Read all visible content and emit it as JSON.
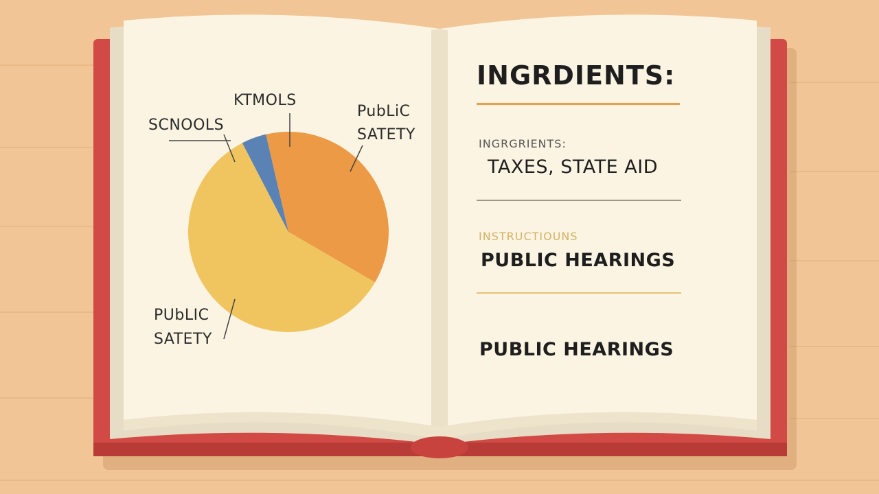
{
  "colors": {
    "table": "#f2c596",
    "cover": "#d24a45",
    "page": "#fbf4e2",
    "rule_orange": "#e8a04c",
    "rule_gray": "#9a9a8a",
    "rule_gold": "#e2c27a"
  },
  "chart_data": {
    "type": "pie",
    "slices": [
      {
        "label": "KTMOLS",
        "value": 37,
        "color": "#ec9a45"
      },
      {
        "label": "SCNOOLS",
        "value": 4,
        "color": "#5a82b4"
      },
      {
        "label": "PUbLIC SATETY",
        "value": 59,
        "color": "#f0c560"
      }
    ],
    "labels": {
      "ktmols": "KTMOLS",
      "schools": "SCNOOLS",
      "public_safety_top_line1": "PubLiC",
      "public_safety_top_line2": "SATETY",
      "public_safety_bottom_line1": "PUbLIC",
      "public_safety_bottom_line2": "SATETY"
    }
  },
  "right_page": {
    "title": "INGRDIENTS:",
    "sub1": "INGRGRIENTS:",
    "item1": "TAXES, STATE AID",
    "sub2": "INSTRUCTIOUNS",
    "item2": "PUBLIC HEARINGS",
    "item3": "PUBLIC HEARINGS"
  }
}
